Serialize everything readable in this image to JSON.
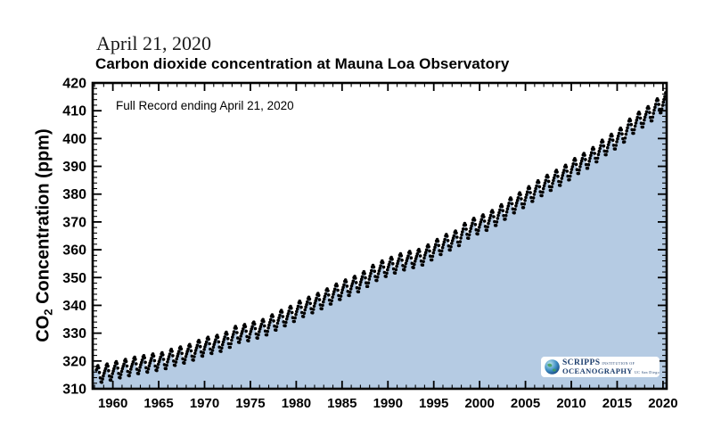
{
  "header": {
    "date_label": "April 21, 2020",
    "title": "Carbon dioxide concentration at Mauna Loa Observatory"
  },
  "annotation": "Full Record ending April 21, 2020",
  "y_axis_title": {
    "pre": "CO",
    "sub": "2",
    "post": " Concentration (ppm)"
  },
  "logo": {
    "name": "scripps-institution-of-oceanography",
    "line1": "SCRIPPS",
    "line1_small": "INSTITUTION OF",
    "line2": "OCEANOGRAPHY",
    "line2_small": "UC San Diego",
    "text_color": "#1c3e6e"
  },
  "colors": {
    "background": "#ffffff",
    "area_fill": "#b5cbe3",
    "dot": "#000000",
    "frame": "#000000",
    "text": "#000000"
  },
  "chart_data": {
    "type": "area",
    "title": "Carbon dioxide concentration at Mauna Loa Observatory",
    "xlabel": "",
    "ylabel": "CO2 Concentration (ppm)",
    "xlim": [
      1957.8,
      2020.4
    ],
    "ylim": [
      310,
      420
    ],
    "x_major_ticks": [
      1960,
      1965,
      1970,
      1975,
      1980,
      1985,
      1990,
      1995,
      2000,
      2005,
      2010,
      2015,
      2020
    ],
    "x_minor_step_years": 1,
    "y_major_ticks": [
      310,
      320,
      330,
      340,
      350,
      360,
      370,
      380,
      390,
      400,
      410,
      420
    ],
    "y_minor_step_ppm": 2,
    "grid": false,
    "legend": "none",
    "series_start": {
      "year": 1958,
      "month": 3
    },
    "series_end": {
      "year": 2020,
      "month": 4
    },
    "annual_mean_ppm": {
      "start_year": 1958,
      "values": [
        315.34,
        315.98,
        316.91,
        317.64,
        318.45,
        318.99,
        319.62,
        320.04,
        321.37,
        322.18,
        323.05,
        324.62,
        325.68,
        326.32,
        327.46,
        329.68,
        330.19,
        331.12,
        332.03,
        333.84,
        335.41,
        336.84,
        338.76,
        340.12,
        341.48,
        343.15,
        344.87,
        346.35,
        347.61,
        349.31,
        351.69,
        353.2,
        354.45,
        355.7,
        356.54,
        357.21,
        358.96,
        360.97,
        362.74,
        363.88,
        366.84,
        368.54,
        369.71,
        371.32,
        373.45,
        375.98,
        377.7,
        379.98,
        382.09,
        384.02,
        385.83,
        387.64,
        390.1,
        391.85,
        394.06,
        396.74,
        398.81,
        401.01,
        404.41,
        406.76,
        408.72,
        411.66,
        414.5
      ]
    },
    "seasonal_cycle_ppm": [
      -0.1,
      0.7,
      1.5,
      2.6,
      3.0,
      2.2,
      0.5,
      -1.5,
      -3.0,
      -3.2,
      -2.1,
      -1.0
    ]
  }
}
